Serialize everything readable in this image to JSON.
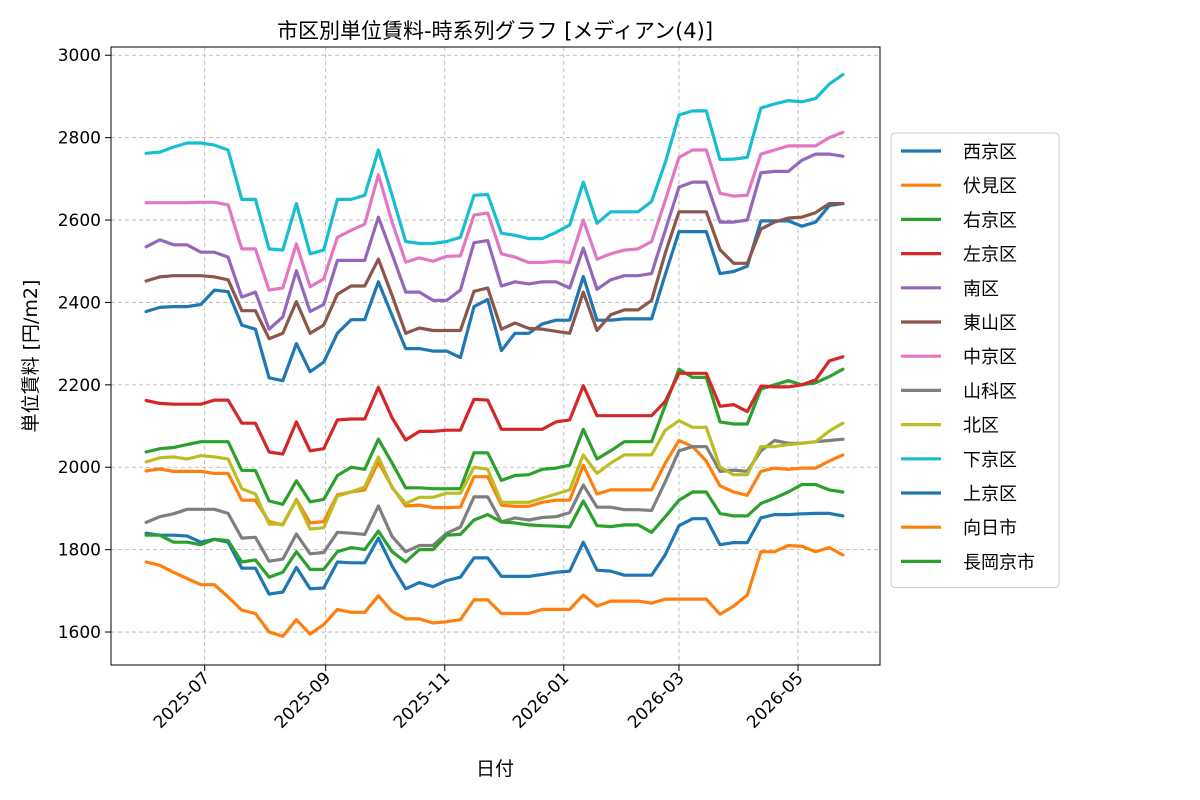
{
  "chart_data": {
    "type": "line",
    "title": "市区別単位賃料-時系列グラフ [メディアン(4)]",
    "xlabel": "日付",
    "ylabel": "単位賃料 [円/m2]",
    "ylim": [
      1520,
      3020
    ],
    "yticks": [
      1600,
      1800,
      2000,
      2200,
      2400,
      2600,
      2800,
      3000
    ],
    "xlim": [
      "2025-05-14",
      "2026-06-12"
    ],
    "xticks": [
      {
        "date": "2025-07-01",
        "label": "2025-07"
      },
      {
        "date": "2025-09-01",
        "label": "2025-09"
      },
      {
        "date": "2025-11-01",
        "label": "2025-11"
      },
      {
        "date": "2026-01-01",
        "label": "2026-01"
      },
      {
        "date": "2026-03-01",
        "label": "2026-03"
      },
      {
        "date": "2026-05-01",
        "label": "2026-05"
      }
    ],
    "grid": true,
    "legend": "right outside",
    "x": [
      "2025-06-01",
      "2025-06-08",
      "2025-06-15",
      "2025-06-22",
      "2025-06-29",
      "2025-07-06",
      "2025-07-13",
      "2025-07-20",
      "2025-07-27",
      "2025-08-03",
      "2025-08-10",
      "2025-08-17",
      "2025-08-24",
      "2025-08-31",
      "2025-09-07",
      "2025-09-14",
      "2025-09-21",
      "2025-09-28",
      "2025-10-05",
      "2025-10-12",
      "2025-10-19",
      "2025-10-26",
      "2025-11-02",
      "2025-11-09",
      "2025-11-16",
      "2025-11-23",
      "2025-11-30",
      "2025-12-07",
      "2025-12-14",
      "2025-12-21",
      "2025-12-28",
      "2026-01-04",
      "2026-01-11",
      "2026-01-18",
      "2026-01-25",
      "2026-02-01",
      "2026-02-08",
      "2026-02-15",
      "2026-02-22",
      "2026-03-01",
      "2026-03-08",
      "2026-03-15",
      "2026-03-22",
      "2026-03-29",
      "2026-04-05",
      "2026-04-12",
      "2026-04-19",
      "2026-04-26",
      "2026-05-03",
      "2026-05-10",
      "2026-05-17",
      "2026-05-24"
    ],
    "series": [
      {
        "name": "西京区",
        "color": "#1f77b4",
        "values": [
          2378,
          2388,
          2390,
          2390,
          2395,
          2430,
          2426,
          2345,
          2335,
          2217,
          2210,
          2300,
          2232,
          2255,
          2325,
          2358,
          2358,
          2450,
          2368,
          2288,
          2288,
          2282,
          2282,
          2266,
          2390,
          2407,
          2283,
          2325,
          2325,
          2348,
          2357,
          2357,
          2463,
          2357,
          2357,
          2360,
          2360,
          2360,
          2468,
          2572,
          2572,
          2572,
          2470,
          2475,
          2488,
          2598,
          2598,
          2598,
          2585,
          2595,
          2635,
          2640
        ]
      },
      {
        "name": "伏見区",
        "color": "#ff7f0e",
        "values": [
          1991,
          1996,
          1990,
          1990,
          1990,
          1985,
          1985,
          1920,
          1920,
          1868,
          1860,
          1922,
          1865,
          1868,
          1933,
          1940,
          1945,
          2013,
          1952,
          1906,
          1908,
          1902,
          1902,
          1903,
          1977,
          1977,
          1908,
          1905,
          1905,
          1915,
          1920,
          1920,
          2005,
          1935,
          1945,
          1945,
          1945,
          1945,
          2010,
          2065,
          2050,
          2015,
          1955,
          1940,
          1932,
          1990,
          1998,
          1995,
          1998,
          1998,
          2015,
          2030
        ]
      },
      {
        "name": "右京区",
        "color": "#2ca02c",
        "values": [
          2037,
          2045,
          2048,
          2055,
          2062,
          2062,
          2062,
          1992,
          1992,
          1918,
          1910,
          1967,
          1916,
          1922,
          1980,
          2000,
          1995,
          2068,
          2010,
          1950,
          1950,
          1948,
          1948,
          1948,
          2035,
          2035,
          1968,
          1980,
          1982,
          1995,
          1998,
          2005,
          2092,
          2020,
          2040,
          2062,
          2062,
          2062,
          2150,
          2238,
          2218,
          2218,
          2110,
          2105,
          2105,
          2190,
          2200,
          2210,
          2200,
          2205,
          2220,
          2238
        ]
      },
      {
        "name": "左京区",
        "color": "#d62728",
        "values": [
          2162,
          2155,
          2153,
          2153,
          2153,
          2163,
          2163,
          2107,
          2107,
          2037,
          2032,
          2110,
          2040,
          2045,
          2115,
          2117,
          2117,
          2194,
          2120,
          2066,
          2087,
          2087,
          2090,
          2090,
          2165,
          2163,
          2092,
          2092,
          2092,
          2092,
          2110,
          2115,
          2198,
          2125,
          2125,
          2125,
          2125,
          2125,
          2160,
          2228,
          2228,
          2228,
          2148,
          2152,
          2135,
          2197,
          2195,
          2195,
          2200,
          2212,
          2258,
          2268
        ]
      },
      {
        "name": "南区",
        "color": "#9467bd",
        "values": [
          2535,
          2552,
          2540,
          2540,
          2522,
          2522,
          2510,
          2413,
          2425,
          2335,
          2365,
          2477,
          2378,
          2395,
          2502,
          2502,
          2502,
          2607,
          2517,
          2425,
          2425,
          2405,
          2405,
          2430,
          2545,
          2550,
          2440,
          2450,
          2445,
          2450,
          2450,
          2435,
          2532,
          2432,
          2455,
          2465,
          2465,
          2470,
          2575,
          2680,
          2692,
          2692,
          2595,
          2595,
          2600,
          2715,
          2718,
          2718,
          2745,
          2760,
          2760,
          2755
        ]
      },
      {
        "name": "東山区",
        "color": "#8c564b",
        "values": [
          2452,
          2462,
          2465,
          2465,
          2465,
          2462,
          2455,
          2380,
          2380,
          2312,
          2325,
          2402,
          2325,
          2345,
          2420,
          2440,
          2440,
          2505,
          2417,
          2325,
          2338,
          2332,
          2332,
          2332,
          2427,
          2435,
          2335,
          2350,
          2337,
          2335,
          2330,
          2325,
          2425,
          2332,
          2370,
          2382,
          2382,
          2405,
          2520,
          2620,
          2620,
          2620,
          2528,
          2495,
          2495,
          2578,
          2595,
          2605,
          2607,
          2618,
          2640,
          2640
        ]
      },
      {
        "name": "中京区",
        "color": "#e377c2",
        "values": [
          2642,
          2642,
          2642,
          2642,
          2643,
          2643,
          2637,
          2530,
          2530,
          2430,
          2435,
          2542,
          2438,
          2457,
          2558,
          2575,
          2590,
          2710,
          2595,
          2498,
          2508,
          2500,
          2512,
          2513,
          2612,
          2617,
          2518,
          2510,
          2497,
          2497,
          2500,
          2497,
          2600,
          2505,
          2518,
          2527,
          2530,
          2548,
          2648,
          2752,
          2770,
          2770,
          2665,
          2658,
          2660,
          2760,
          2770,
          2780,
          2780,
          2780,
          2800,
          2813
        ]
      },
      {
        "name": "山科区",
        "color": "#7f7f7f",
        "values": [
          1866,
          1880,
          1887,
          1898,
          1898,
          1898,
          1888,
          1828,
          1830,
          1772,
          1777,
          1838,
          1790,
          1793,
          1842,
          1840,
          1837,
          1906,
          1832,
          1795,
          1810,
          1810,
          1840,
          1855,
          1928,
          1928,
          1867,
          1877,
          1872,
          1878,
          1880,
          1890,
          1957,
          1903,
          1903,
          1897,
          1897,
          1895,
          1965,
          2040,
          2050,
          2050,
          1990,
          1993,
          1990,
          2040,
          2065,
          2058,
          2058,
          2062,
          2065,
          2068
        ]
      },
      {
        "name": "北区",
        "color": "#bcbd22",
        "values": [
          2013,
          2023,
          2025,
          2020,
          2028,
          2025,
          2020,
          1948,
          1935,
          1862,
          1862,
          1920,
          1850,
          1853,
          1930,
          1940,
          1952,
          2025,
          1950,
          1912,
          1927,
          1927,
          1937,
          1937,
          2000,
          1995,
          1915,
          1915,
          1915,
          1925,
          1935,
          1945,
          2030,
          1985,
          2010,
          2030,
          2030,
          2030,
          2090,
          2113,
          2097,
          2097,
          2000,
          1982,
          1982,
          2050,
          2050,
          2055,
          2058,
          2062,
          2088,
          2107
        ]
      },
      {
        "name": "下京区",
        "color": "#17becf",
        "values": [
          2762,
          2765,
          2777,
          2787,
          2787,
          2782,
          2770,
          2650,
          2650,
          2530,
          2527,
          2640,
          2518,
          2527,
          2650,
          2650,
          2660,
          2770,
          2660,
          2548,
          2543,
          2543,
          2548,
          2558,
          2660,
          2662,
          2568,
          2563,
          2555,
          2555,
          2570,
          2588,
          2692,
          2592,
          2620,
          2620,
          2620,
          2645,
          2740,
          2855,
          2865,
          2865,
          2747,
          2748,
          2752,
          2872,
          2882,
          2890,
          2887,
          2895,
          2930,
          2953
        ]
      },
      {
        "name": "上京区",
        "color": "#1f77b4",
        "values": [
          1840,
          1835,
          1835,
          1833,
          1818,
          1825,
          1818,
          1755,
          1755,
          1692,
          1697,
          1757,
          1705,
          1707,
          1770,
          1768,
          1768,
          1828,
          1760,
          1705,
          1720,
          1710,
          1725,
          1733,
          1780,
          1780,
          1735,
          1735,
          1735,
          1740,
          1745,
          1748,
          1818,
          1750,
          1748,
          1738,
          1738,
          1738,
          1788,
          1858,
          1875,
          1875,
          1812,
          1817,
          1817,
          1877,
          1885,
          1885,
          1887,
          1888,
          1888,
          1882
        ]
      },
      {
        "name": "向日市",
        "color": "#ff7f0e",
        "values": [
          1770,
          1762,
          1745,
          1730,
          1715,
          1715,
          1685,
          1653,
          1645,
          1600,
          1590,
          1630,
          1595,
          1618,
          1655,
          1648,
          1648,
          1688,
          1650,
          1632,
          1632,
          1622,
          1625,
          1630,
          1678,
          1678,
          1645,
          1645,
          1645,
          1655,
          1655,
          1655,
          1690,
          1663,
          1675,
          1675,
          1675,
          1670,
          1680,
          1680,
          1680,
          1680,
          1643,
          1663,
          1690,
          1795,
          1795,
          1810,
          1808,
          1795,
          1805,
          1787
        ]
      },
      {
        "name": "長岡京市",
        "color": "#2ca02c",
        "values": [
          1835,
          1835,
          1818,
          1818,
          1812,
          1825,
          1822,
          1770,
          1775,
          1733,
          1745,
          1795,
          1752,
          1752,
          1795,
          1805,
          1800,
          1845,
          1795,
          1770,
          1800,
          1800,
          1835,
          1837,
          1872,
          1885,
          1867,
          1865,
          1860,
          1858,
          1857,
          1855,
          1918,
          1858,
          1856,
          1860,
          1860,
          1842,
          1880,
          1920,
          1940,
          1940,
          1888,
          1882,
          1882,
          1912,
          1925,
          1940,
          1958,
          1958,
          1945,
          1940
        ]
      }
    ]
  }
}
